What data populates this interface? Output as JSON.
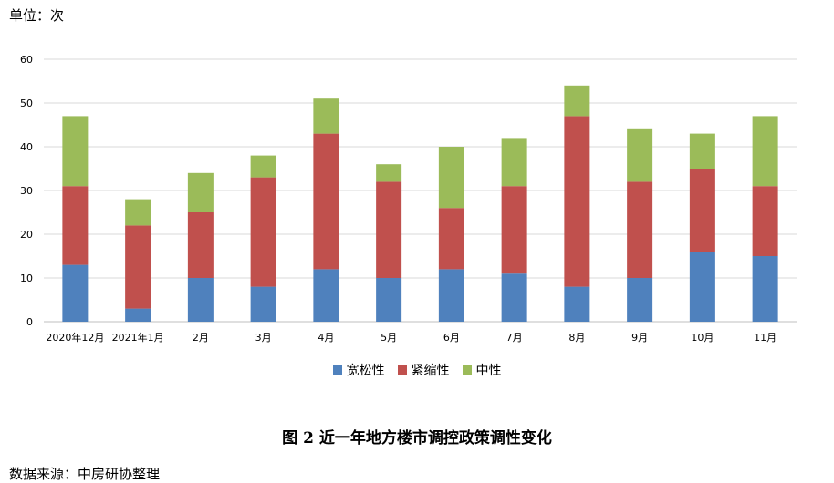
{
  "unit_label": "单位：次",
  "caption": "图 2 近一年地方楼市调控政策调性变化",
  "source": "数据来源：中房研协整理",
  "colors": {
    "宽松性": "#4F81BD",
    "紧缩性": "#C0504D",
    "中性": "#9BBB59",
    "grid": "#d9d9d9",
    "axis": "#bfbfbf"
  },
  "chart_data": {
    "type": "bar",
    "stacked": true,
    "categories": [
      "2020年12月",
      "2021年1月",
      "2月",
      "3月",
      "4月",
      "5月",
      "6月",
      "7月",
      "8月",
      "9月",
      "10月",
      "11月"
    ],
    "series": [
      {
        "name": "宽松性",
        "values": [
          13,
          3,
          10,
          8,
          12,
          10,
          12,
          11,
          8,
          10,
          16,
          15
        ]
      },
      {
        "name": "紧缩性",
        "values": [
          18,
          19,
          15,
          25,
          31,
          22,
          14,
          20,
          39,
          22,
          19,
          16
        ]
      },
      {
        "name": "中性",
        "values": [
          16,
          6,
          9,
          5,
          8,
          4,
          14,
          11,
          7,
          12,
          8,
          16
        ]
      }
    ],
    "ylim": [
      0,
      60
    ],
    "yticks": [
      0,
      10,
      20,
      30,
      40,
      50,
      60
    ],
    "grid": true,
    "legend_position": "bottom"
  }
}
